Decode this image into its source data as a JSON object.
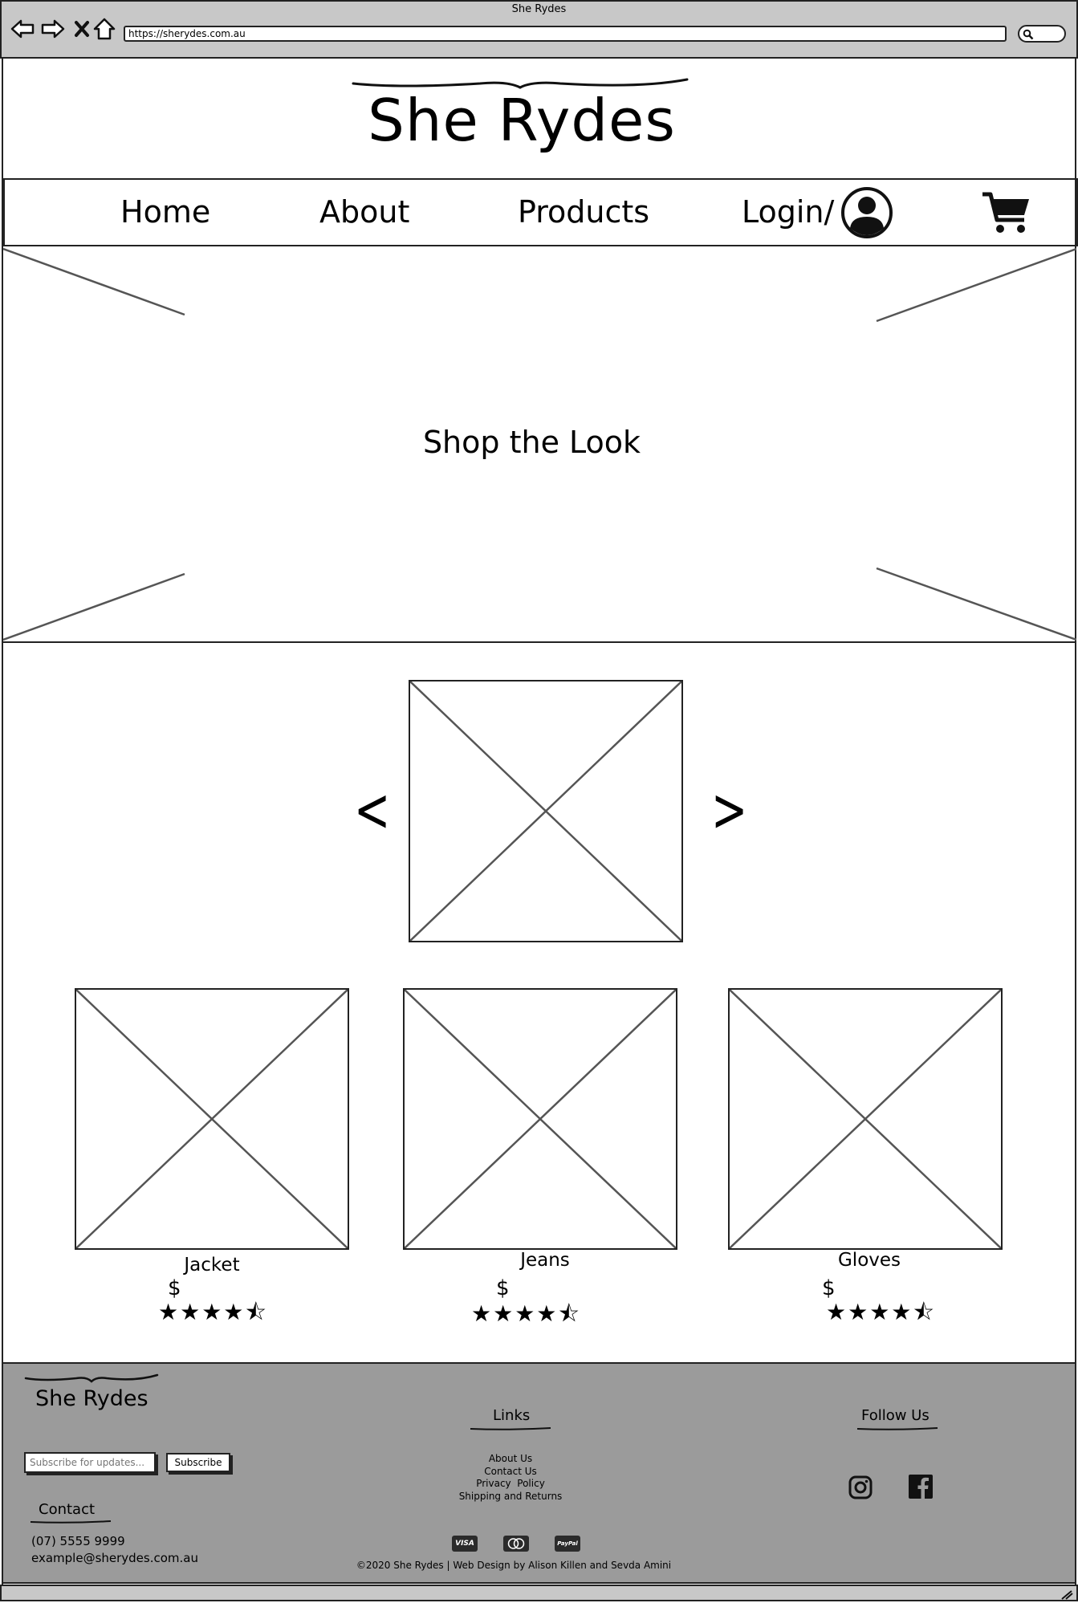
{
  "browser": {
    "window_title": "She Rydes",
    "url": "https://sherydes.com.au",
    "icons": [
      "back-icon",
      "forward-icon",
      "close-icon",
      "home-icon",
      "search-icon"
    ]
  },
  "header": {
    "logo": "She Rydes"
  },
  "nav": {
    "items": [
      {
        "label": "Home"
      },
      {
        "label": "About"
      },
      {
        "label": "Products"
      },
      {
        "label": "Login/"
      }
    ],
    "icons": [
      "user-avatar-icon",
      "cart-icon"
    ]
  },
  "hero": {
    "text": "Shop the Look"
  },
  "carousel": {
    "prev_icon": "chevron-left-icon",
    "next_icon": "chevron-right-icon",
    "prev_glyph": "<",
    "next_glyph": ">"
  },
  "products": [
    {
      "name": "Jacket",
      "price": "$",
      "rating": 4.5,
      "stars": "★★★★⯪"
    },
    {
      "name": "Jeans",
      "price": "$",
      "rating": 4.5,
      "stars": "★★★★⯪"
    },
    {
      "name": "Gloves",
      "price": "$",
      "rating": 4.5,
      "stars": "★★★★⯪"
    }
  ],
  "footer": {
    "logo": "She Rydes",
    "subscribe": {
      "placeholder": "Subscribe for updates...",
      "button": "Subscribe"
    },
    "contact": {
      "heading": "Contact",
      "phone": "(07) 5555 9999",
      "email": "example@sherydes.com.au"
    },
    "links": {
      "heading": "Links",
      "items": [
        "About Us",
        "Contact Us",
        "Privacy  Policy",
        "Shipping and Returns"
      ]
    },
    "follow": {
      "heading": "Follow Us",
      "icons": [
        "instagram-icon",
        "facebook-icon"
      ]
    },
    "payments": [
      "VISA",
      "",
      "PayPal"
    ],
    "copyright": "©2020 She Rydes | Web Design by Alison Killen and Sevda Amini"
  },
  "colors": {
    "chrome": "#c8c8c8",
    "footer": "#9b9b9b",
    "outline": "#222222"
  }
}
